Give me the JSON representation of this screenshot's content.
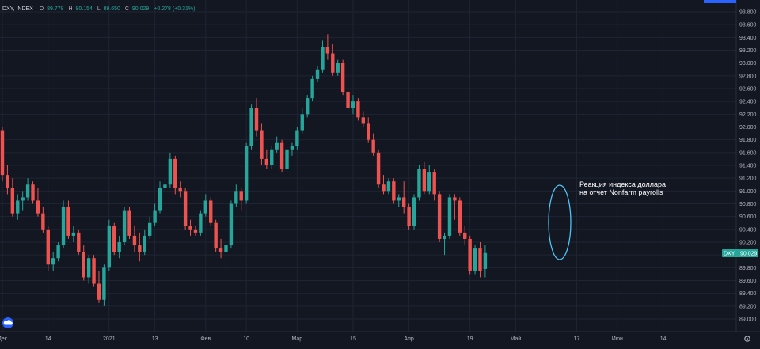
{
  "header": {
    "symbol": "DXY, INDEX",
    "o_label": "O",
    "o": "89.778",
    "h_label": "H",
    "h": "90.154",
    "l_label": "L",
    "l": "89.650",
    "c_label": "C",
    "c": "90.029",
    "change": "+0.278 (+0.31%)"
  },
  "price_tag": {
    "symbol": "DXY",
    "value": "90.029"
  },
  "annotation": {
    "line1": "Реакция индекса доллара",
    "line2": "на отчет Nonfarm payrolls"
  },
  "colors": {
    "up": "#26a69a",
    "down": "#ef5350",
    "bg": "#131722",
    "grid": "#1f2433",
    "text": "#b2b5be",
    "ellipse": "#4fc3f7",
    "tag": "#26a69a"
  },
  "icons": {
    "logo": "cloud-logo-icon",
    "settings": "gear-icon"
  },
  "chart_data": {
    "type": "candlestick",
    "title": "",
    "xlabel": "",
    "ylabel": "",
    "ylim": [
      89.0,
      93.8
    ],
    "y_ticks": [
      "93.800",
      "93.600",
      "93.400",
      "93.200",
      "93.000",
      "92.800",
      "92.600",
      "92.400",
      "92.200",
      "92.000",
      "91.800",
      "91.600",
      "91.400",
      "91.200",
      "91.000",
      "90.800",
      "90.600",
      "90.400",
      "90.200",
      "90.000",
      "89.800",
      "89.600",
      "89.400",
      "89.200",
      "89.000"
    ],
    "x_labels": [
      "Дек",
      "14",
      "2021",
      "13",
      "Фев",
      "10",
      "Мар",
      "15",
      "Апр",
      "19",
      "Май",
      "17",
      "Июн",
      "14"
    ],
    "x_label_slots": [
      0,
      9,
      21,
      30,
      40,
      48,
      58,
      69,
      80,
      92,
      101,
      113,
      121,
      130
    ],
    "grid": true,
    "candles": [
      [
        91.95,
        92.0,
        91.15,
        91.25
      ],
      [
        91.25,
        91.4,
        90.95,
        91.05
      ],
      [
        91.05,
        91.2,
        90.6,
        90.65
      ],
      [
        90.65,
        90.95,
        90.55,
        90.85
      ],
      [
        90.85,
        91.0,
        90.7,
        90.9
      ],
      [
        90.9,
        91.2,
        90.85,
        91.1
      ],
      [
        91.1,
        91.15,
        90.8,
        90.85
      ],
      [
        90.85,
        91.05,
        90.6,
        90.65
      ],
      [
        90.65,
        90.75,
        90.35,
        90.4
      ],
      [
        90.4,
        90.45,
        89.75,
        89.85
      ],
      [
        89.85,
        90.05,
        89.75,
        89.95
      ],
      [
        89.95,
        90.2,
        89.9,
        90.15
      ],
      [
        90.15,
        90.85,
        90.1,
        90.75
      ],
      [
        90.75,
        90.85,
        90.25,
        90.3
      ],
      [
        90.3,
        90.45,
        90.2,
        90.35
      ],
      [
        90.35,
        90.4,
        90.0,
        90.05
      ],
      [
        90.05,
        90.15,
        89.6,
        89.65
      ],
      [
        89.65,
        90.0,
        89.55,
        89.95
      ],
      [
        89.95,
        90.0,
        89.5,
        89.55
      ],
      [
        89.55,
        89.75,
        89.25,
        89.3
      ],
      [
        89.3,
        89.85,
        89.2,
        89.8
      ],
      [
        89.8,
        90.55,
        89.75,
        90.45
      ],
      [
        90.45,
        90.5,
        90.0,
        90.05
      ],
      [
        90.05,
        90.3,
        89.95,
        90.2
      ],
      [
        90.2,
        90.75,
        90.15,
        90.7
      ],
      [
        90.7,
        90.75,
        90.25,
        90.3
      ],
      [
        90.3,
        90.45,
        90.05,
        90.15
      ],
      [
        90.15,
        90.35,
        89.9,
        90.05
      ],
      [
        90.05,
        90.4,
        90.0,
        90.3
      ],
      [
        90.3,
        90.6,
        90.25,
        90.5
      ],
      [
        90.5,
        90.8,
        90.45,
        90.7
      ],
      [
        90.7,
        91.15,
        90.65,
        91.05
      ],
      [
        91.05,
        91.2,
        91.0,
        91.1
      ],
      [
        91.1,
        91.6,
        91.05,
        91.5
      ],
      [
        91.5,
        91.55,
        90.95,
        91.05
      ],
      [
        91.05,
        91.15,
        90.9,
        91.0
      ],
      [
        91.0,
        91.05,
        90.4,
        90.45
      ],
      [
        90.45,
        90.55,
        90.3,
        90.4
      ],
      [
        90.4,
        90.45,
        90.3,
        90.35
      ],
      [
        90.35,
        90.7,
        90.3,
        90.65
      ],
      [
        90.65,
        90.95,
        90.6,
        90.85
      ],
      [
        90.85,
        90.9,
        90.45,
        90.5
      ],
      [
        90.5,
        90.55,
        90.05,
        90.1
      ],
      [
        90.1,
        90.25,
        89.95,
        90.05
      ],
      [
        90.05,
        90.2,
        89.7,
        90.15
      ],
      [
        90.15,
        90.85,
        90.1,
        90.8
      ],
      [
        90.8,
        91.1,
        90.75,
        91.0
      ],
      [
        91.0,
        91.05,
        90.7,
        90.85
      ],
      [
        90.85,
        91.75,
        90.8,
        91.7
      ],
      [
        91.7,
        92.35,
        91.65,
        92.3
      ],
      [
        92.3,
        92.45,
        91.85,
        91.95
      ],
      [
        91.95,
        92.05,
        91.4,
        91.5
      ],
      [
        91.5,
        91.65,
        91.35,
        91.4
      ],
      [
        91.4,
        91.7,
        91.35,
        91.65
      ],
      [
        91.65,
        91.85,
        91.6,
        91.75
      ],
      [
        91.75,
        91.8,
        91.3,
        91.35
      ],
      [
        91.35,
        91.7,
        91.3,
        91.65
      ],
      [
        91.65,
        91.75,
        91.55,
        91.7
      ],
      [
        91.7,
        92.0,
        91.65,
        91.95
      ],
      [
        91.95,
        92.3,
        91.9,
        92.2
      ],
      [
        92.2,
        92.5,
        92.15,
        92.45
      ],
      [
        92.45,
        92.8,
        92.4,
        92.75
      ],
      [
        92.75,
        92.95,
        92.7,
        92.9
      ],
      [
        92.9,
        93.35,
        92.85,
        93.25
      ],
      [
        93.25,
        93.45,
        93.05,
        93.15
      ],
      [
        93.15,
        93.3,
        92.8,
        92.85
      ],
      [
        92.85,
        93.05,
        92.8,
        93.0
      ],
      [
        93.0,
        93.05,
        92.5,
        92.55
      ],
      [
        92.55,
        92.6,
        92.25,
        92.3
      ],
      [
        92.3,
        92.5,
        92.2,
        92.4
      ],
      [
        92.4,
        92.45,
        92.1,
        92.15
      ],
      [
        92.15,
        92.25,
        92.0,
        92.05
      ],
      [
        92.05,
        92.15,
        91.75,
        91.8
      ],
      [
        91.8,
        91.9,
        91.55,
        91.6
      ],
      [
        91.6,
        91.65,
        91.05,
        91.1
      ],
      [
        91.1,
        91.25,
        90.95,
        91.0
      ],
      [
        91.0,
        91.2,
        90.95,
        91.15
      ],
      [
        91.15,
        91.2,
        90.8,
        90.85
      ],
      [
        90.85,
        90.95,
        90.75,
        90.9
      ],
      [
        90.9,
        91.15,
        90.65,
        90.75
      ],
      [
        90.75,
        90.8,
        90.4,
        90.45
      ],
      [
        90.45,
        90.95,
        90.4,
        90.9
      ],
      [
        90.9,
        91.4,
        90.85,
        91.35
      ],
      [
        91.35,
        91.45,
        90.95,
        91.0
      ],
      [
        91.0,
        91.4,
        90.95,
        91.3
      ],
      [
        91.3,
        91.35,
        90.85,
        90.95
      ],
      [
        90.95,
        91.0,
        90.2,
        90.25
      ],
      [
        90.25,
        90.35,
        90.0,
        90.3
      ],
      [
        90.3,
        90.95,
        90.25,
        90.9
      ],
      [
        90.9,
        90.95,
        90.55,
        90.85
      ],
      [
        90.85,
        90.9,
        90.3,
        90.35
      ],
      [
        90.35,
        90.45,
        90.15,
        90.25
      ],
      [
        90.25,
        90.3,
        89.7,
        89.75
      ],
      [
        89.75,
        90.15,
        89.7,
        90.1
      ],
      [
        90.1,
        90.2,
        89.65,
        89.75
      ],
      [
        89.78,
        90.15,
        89.65,
        90.03
      ]
    ]
  }
}
